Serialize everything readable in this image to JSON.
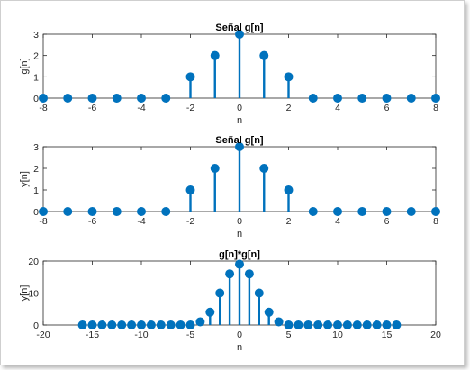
{
  "chart_data": [
    {
      "type": "stem",
      "title": "Señal g[n]",
      "xlabel": "n",
      "ylabel": "g[n]",
      "xlim": [
        -8,
        8
      ],
      "ylim": [
        0,
        3
      ],
      "xticks": [
        -8,
        -6,
        -4,
        -2,
        0,
        2,
        4,
        6,
        8
      ],
      "yticks": [
        0,
        1,
        2,
        3
      ],
      "x": [
        -8,
        -7,
        -6,
        -5,
        -4,
        -3,
        -2,
        -1,
        0,
        1,
        2,
        3,
        4,
        5,
        6,
        7,
        8
      ],
      "y": [
        0,
        0,
        0,
        0,
        0,
        0,
        1,
        2,
        3,
        2,
        1,
        0,
        0,
        0,
        0,
        0,
        0
      ],
      "color": "#0072BD",
      "grid": false
    },
    {
      "type": "stem",
      "title": "Señal g[n]",
      "xlabel": "n",
      "ylabel": "y[n]",
      "xlim": [
        -8,
        8
      ],
      "ylim": [
        0,
        3
      ],
      "xticks": [
        -8,
        -6,
        -4,
        -2,
        0,
        2,
        4,
        6,
        8
      ],
      "yticks": [
        0,
        1,
        2,
        3
      ],
      "x": [
        -8,
        -7,
        -6,
        -5,
        -4,
        -3,
        -2,
        -1,
        0,
        1,
        2,
        3,
        4,
        5,
        6,
        7,
        8
      ],
      "y": [
        0,
        0,
        0,
        0,
        0,
        0,
        1,
        2,
        3,
        2,
        1,
        0,
        0,
        0,
        0,
        0,
        0
      ],
      "color": "#0072BD",
      "grid": false
    },
    {
      "type": "stem",
      "title": "g[n]*g[n]",
      "xlabel": "n",
      "ylabel": "y[n]",
      "xlim": [
        -20,
        20
      ],
      "ylim": [
        0,
        20
      ],
      "xticks": [
        -20,
        -15,
        -10,
        -5,
        0,
        5,
        10,
        15,
        20
      ],
      "yticks": [
        0,
        10,
        20
      ],
      "x": [
        -16,
        -15,
        -14,
        -13,
        -12,
        -11,
        -10,
        -9,
        -8,
        -7,
        -6,
        -5,
        -4,
        -3,
        -2,
        -1,
        0,
        1,
        2,
        3,
        4,
        5,
        6,
        7,
        8,
        9,
        10,
        11,
        12,
        13,
        14,
        15,
        16
      ],
      "y": [
        0,
        0,
        0,
        0,
        0,
        0,
        0,
        0,
        0,
        0,
        0,
        0,
        1,
        4,
        10,
        16,
        19,
        16,
        10,
        4,
        1,
        0,
        0,
        0,
        0,
        0,
        0,
        0,
        0,
        0,
        0,
        0,
        0
      ],
      "color": "#0072BD",
      "grid": false
    }
  ]
}
